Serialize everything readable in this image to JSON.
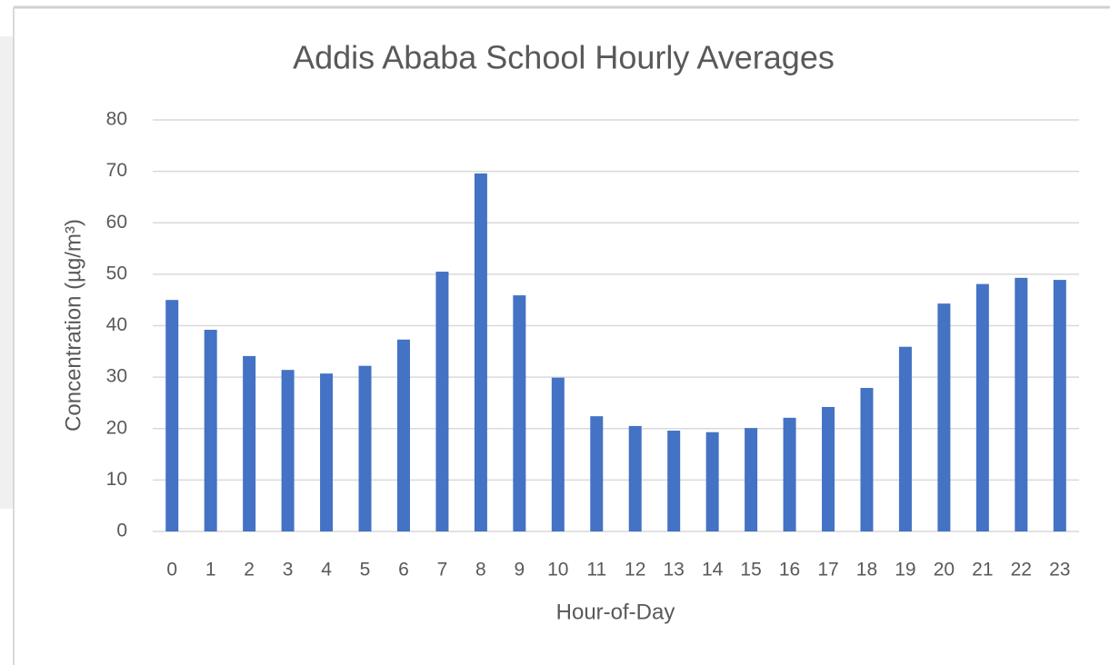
{
  "chart_data": {
    "type": "bar",
    "title": "Addis Ababa School Hourly Averages",
    "x_label": "Hour-of-Day",
    "y_label": "Concentration (µg/m³)",
    "categories": [
      "0",
      "1",
      "2",
      "3",
      "4",
      "5",
      "6",
      "7",
      "8",
      "9",
      "10",
      "11",
      "12",
      "13",
      "14",
      "15",
      "16",
      "17",
      "18",
      "19",
      "20",
      "21",
      "22",
      "23"
    ],
    "values": [
      45.0,
      39.2,
      34.1,
      31.4,
      30.7,
      32.2,
      37.3,
      50.5,
      69.6,
      45.9,
      29.9,
      22.4,
      20.5,
      19.6,
      19.3,
      20.1,
      22.1,
      24.2,
      27.9,
      35.9,
      44.3,
      48.1,
      49.3,
      48.9
    ],
    "color": "#4472c4",
    "ylim": [
      0,
      80
    ],
    "yticks": [
      0,
      10,
      20,
      30,
      40,
      50,
      60,
      70,
      80
    ],
    "grid": true
  }
}
